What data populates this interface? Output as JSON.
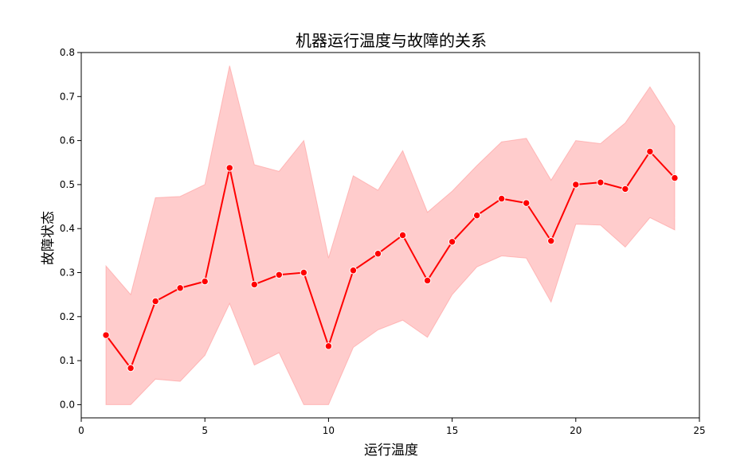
{
  "chart_data": {
    "type": "line",
    "title": "机器运行温度与故障的关系",
    "xlabel": "运行温度",
    "ylabel": "故障状态",
    "xlim": [
      0,
      25
    ],
    "ylim": [
      -0.03,
      0.8
    ],
    "xticks": [
      0,
      5,
      10,
      15,
      20,
      25
    ],
    "yticks": [
      0.0,
      0.1,
      0.2,
      0.3,
      0.4,
      0.5,
      0.6,
      0.7,
      0.8
    ],
    "xtick_labels": [
      "0",
      "5",
      "10",
      "15",
      "20",
      "25"
    ],
    "ytick_labels": [
      "0.0",
      "0.1",
      "0.2",
      "0.3",
      "0.4",
      "0.5",
      "0.6",
      "0.7",
      "0.8"
    ],
    "grid": false,
    "line_color": "#ff0000",
    "band_color": "#ff9999",
    "series": [
      {
        "x": [
          1,
          2,
          3,
          4,
          5,
          6,
          7,
          8,
          9,
          10,
          11,
          12,
          13,
          14,
          15,
          16,
          17,
          18,
          19,
          20,
          21,
          22,
          23,
          24
        ],
        "values": [
          0.158,
          0.083,
          0.235,
          0.265,
          0.28,
          0.538,
          0.273,
          0.295,
          0.3,
          0.133,
          0.305,
          0.343,
          0.385,
          0.282,
          0.37,
          0.43,
          0.468,
          0.458,
          0.372,
          0.5,
          0.505,
          0.49,
          0.575,
          0.515
        ],
        "ci_lower": [
          0.0,
          0.0,
          0.058,
          0.053,
          0.112,
          0.23,
          0.09,
          0.118,
          0.0,
          0.0,
          0.13,
          0.17,
          0.192,
          0.153,
          0.25,
          0.313,
          0.338,
          0.333,
          0.233,
          0.41,
          0.408,
          0.358,
          0.425,
          0.397
        ],
        "ci_upper": [
          0.315,
          0.25,
          0.47,
          0.473,
          0.5,
          0.77,
          0.545,
          0.53,
          0.6,
          0.333,
          0.52,
          0.487,
          0.577,
          0.437,
          0.485,
          0.543,
          0.597,
          0.605,
          0.51,
          0.6,
          0.593,
          0.64,
          0.722,
          0.633
        ]
      }
    ]
  }
}
